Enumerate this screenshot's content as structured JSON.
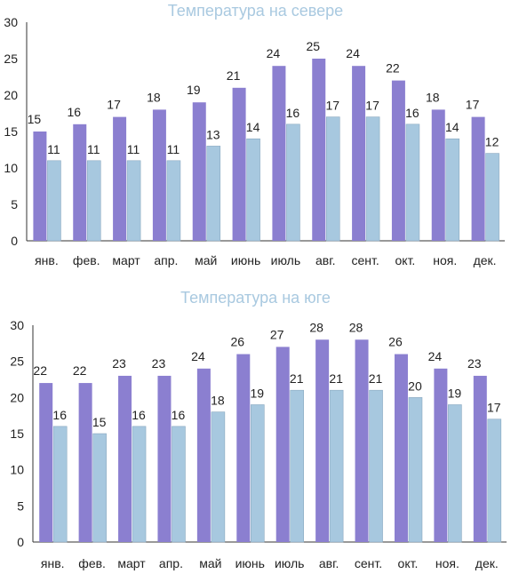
{
  "colors": {
    "series_1": "#8b7fd0",
    "series_2": "#a7c8df",
    "title": "#a9c9e0",
    "axis": "#333333"
  },
  "chart_data": [
    {
      "type": "bar",
      "title": "Температура на севере",
      "categories": [
        "янв.",
        "фев.",
        "март",
        "апр.",
        "май",
        "июнь",
        "июль",
        "авг.",
        "сент.",
        "окт.",
        "ноя.",
        "дек."
      ],
      "ylim": [
        0,
        30
      ],
      "yticks": [
        0,
        5,
        10,
        15,
        20,
        25,
        30
      ],
      "grid": false,
      "series": [
        {
          "values": [
            15,
            16,
            17,
            18,
            19,
            21,
            24,
            25,
            24,
            22,
            18,
            17
          ]
        },
        {
          "values": [
            11,
            11,
            11,
            11,
            13,
            14,
            16,
            17,
            17,
            16,
            14,
            12
          ]
        }
      ]
    },
    {
      "type": "bar",
      "title": "Температура на юге",
      "categories": [
        "янв.",
        "фев.",
        "март",
        "апр.",
        "май",
        "июнь",
        "июль",
        "авг.",
        "сент.",
        "окт.",
        "ноя.",
        "дек."
      ],
      "ylim": [
        0,
        30
      ],
      "yticks": [
        0,
        5,
        10,
        15,
        20,
        25,
        30
      ],
      "grid": false,
      "series": [
        {
          "values": [
            22,
            22,
            23,
            23,
            24,
            26,
            27,
            28,
            28,
            26,
            24,
            23
          ]
        },
        {
          "values": [
            16,
            15,
            16,
            16,
            18,
            19,
            21,
            21,
            21,
            20,
            19,
            17
          ]
        }
      ]
    }
  ]
}
